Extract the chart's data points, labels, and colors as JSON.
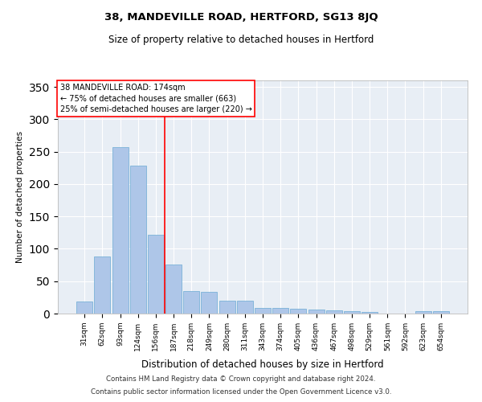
{
  "title1": "38, MANDEVILLE ROAD, HERTFORD, SG13 8JQ",
  "title2": "Size of property relative to detached houses in Hertford",
  "xlabel": "Distribution of detached houses by size in Hertford",
  "ylabel": "Number of detached properties",
  "categories": [
    "31sqm",
    "62sqm",
    "93sqm",
    "124sqm",
    "156sqm",
    "187sqm",
    "218sqm",
    "249sqm",
    "280sqm",
    "311sqm",
    "343sqm",
    "374sqm",
    "405sqm",
    "436sqm",
    "467sqm",
    "498sqm",
    "529sqm",
    "561sqm",
    "592sqm",
    "623sqm",
    "654sqm"
  ],
  "values": [
    19,
    88,
    257,
    229,
    122,
    76,
    35,
    34,
    20,
    20,
    9,
    9,
    7,
    6,
    5,
    4,
    3,
    0,
    0,
    4,
    4
  ],
  "bar_color": "#aec6e8",
  "bar_edge_color": "#6aaad4",
  "vline_x_index": 4.5,
  "vline_color": "red",
  "annotation_line1": "38 MANDEVILLE ROAD: 174sqm",
  "annotation_line2": "← 75% of detached houses are smaller (663)",
  "annotation_line3": "25% of semi-detached houses are larger (220) →",
  "annotation_box_facecolor": "white",
  "annotation_box_edgecolor": "red",
  "ylim": [
    0,
    360
  ],
  "yticks": [
    0,
    50,
    100,
    150,
    200,
    250,
    300,
    350
  ],
  "bg_color": "#e8eef5",
  "grid_color": "white",
  "footnote1": "Contains HM Land Registry data © Crown copyright and database right 2024.",
  "footnote2": "Contains public sector information licensed under the Open Government Licence v3.0."
}
